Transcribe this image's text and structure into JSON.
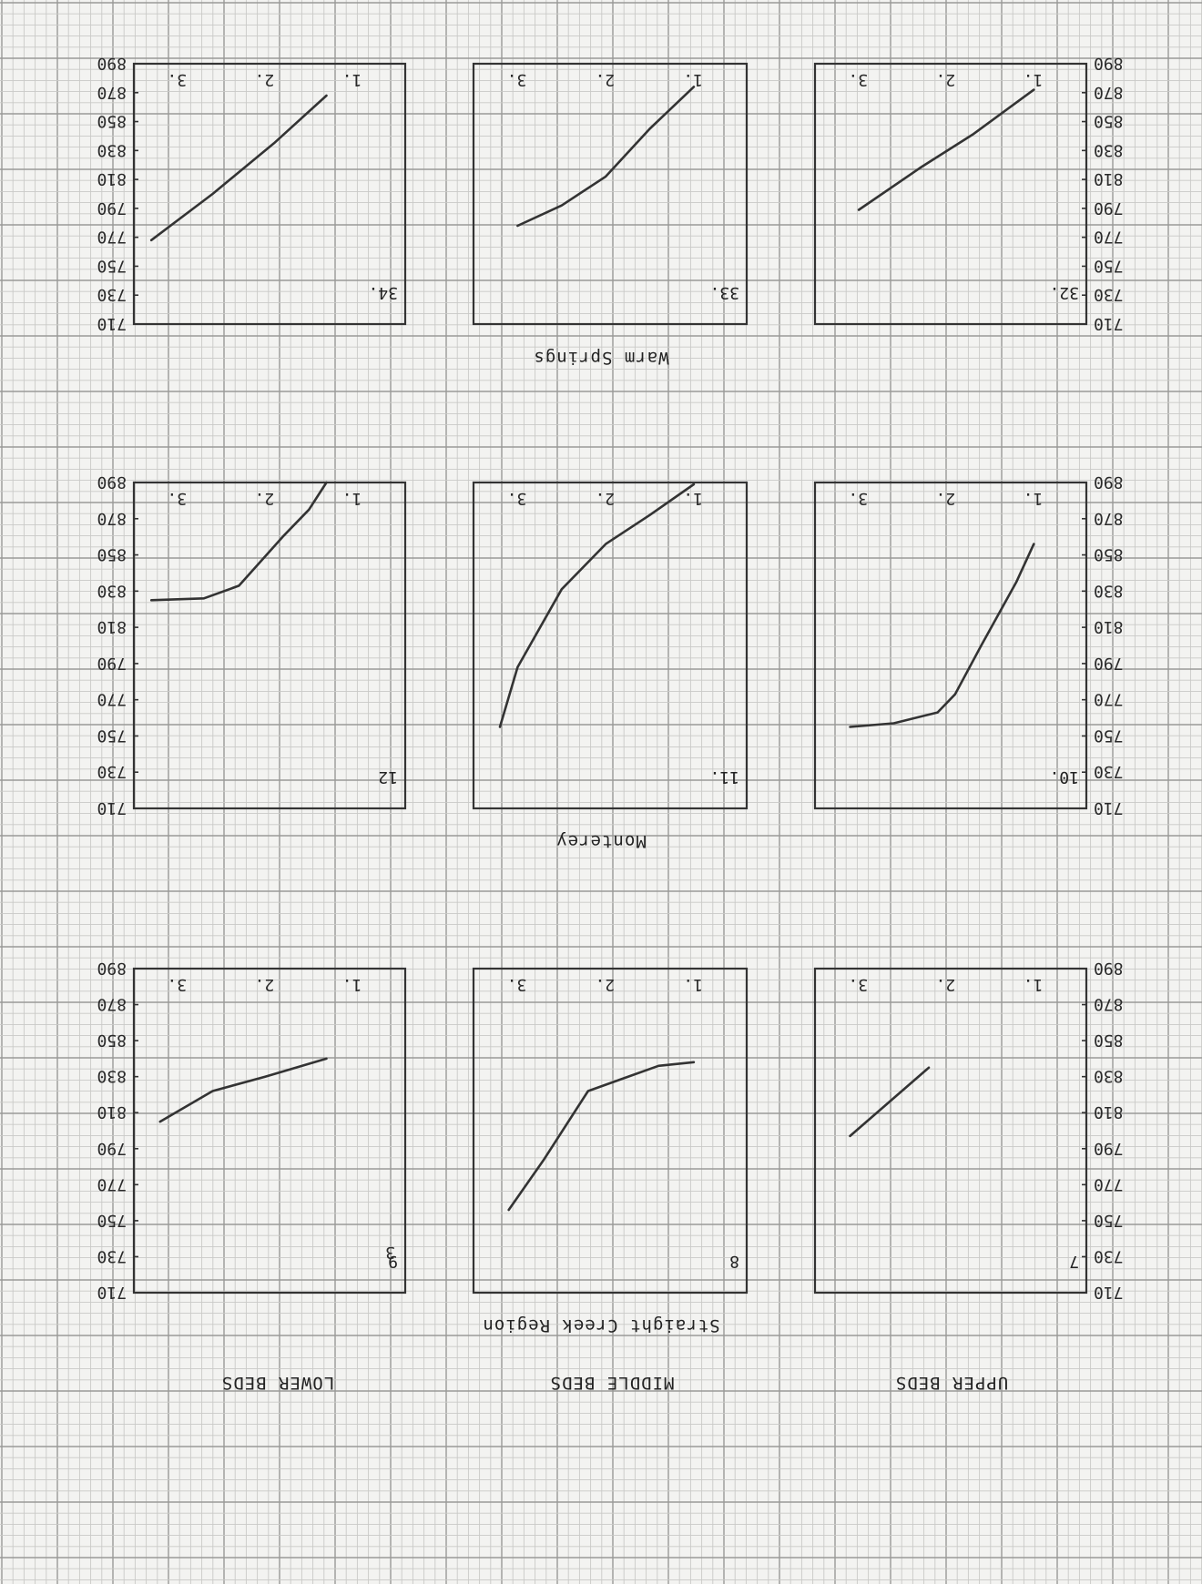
{
  "chart_data": [
    {
      "type": "line",
      "id": "7",
      "group": "Straight Creek Region",
      "beds": "UPPER BEDS",
      "x_ticks": [
        "1.",
        "2.",
        "3."
      ],
      "points": [
        [
          2.2,
          835
        ],
        [
          3.1,
          797
        ]
      ]
    },
    {
      "type": "line",
      "id": "8",
      "group": "Straight Creek Region",
      "beds": "MIDDLE BEDS",
      "x_ticks": [
        "1.",
        "2.",
        "3."
      ],
      "points": [
        [
          1.0,
          838
        ],
        [
          1.4,
          836
        ],
        [
          1.8,
          829
        ],
        [
          2.2,
          822
        ],
        [
          2.7,
          784
        ],
        [
          3.1,
          756
        ]
      ]
    },
    {
      "type": "line",
      "id": "9",
      "group": "Straight Creek Region",
      "beds": "LOWER BEDS",
      "x_ticks": [
        "1.",
        "2.",
        "3."
      ],
      "points": [
        [
          1.3,
          840
        ],
        [
          2.0,
          830
        ],
        [
          2.6,
          822
        ],
        [
          3.2,
          805
        ]
      ]
    },
    {
      "type": "line",
      "id": "10.",
      "group": "Monterey",
      "beds": "UPPER BEDS",
      "x_ticks": [
        "1.",
        "2.",
        "3."
      ],
      "points": [
        [
          1.0,
          856
        ],
        [
          1.2,
          835
        ],
        [
          1.6,
          800
        ],
        [
          1.9,
          773
        ],
        [
          2.1,
          763
        ],
        [
          2.6,
          757
        ],
        [
          3.1,
          755
        ]
      ]
    },
    {
      "type": "line",
      "id": "11.",
      "group": "Monterey",
      "beds": "MIDDLE BEDS",
      "x_ticks": [
        "1.",
        "2.",
        "3."
      ],
      "points": [
        [
          1.0,
          889
        ],
        [
          1.5,
          872
        ],
        [
          2.0,
          856
        ],
        [
          2.5,
          831
        ],
        [
          3.0,
          788
        ],
        [
          3.2,
          755
        ]
      ]
    },
    {
      "type": "line",
      "id": "12",
      "group": "Monterey",
      "beds": "LOWER BEDS",
      "x_ticks": [
        "1.",
        "2.",
        "3."
      ],
      "points": [
        [
          1.3,
          890
        ],
        [
          1.5,
          875
        ],
        [
          1.8,
          860
        ],
        [
          2.3,
          833
        ],
        [
          2.7,
          826
        ],
        [
          3.3,
          825
        ]
      ]
    },
    {
      "type": "line",
      "id": "32.",
      "group": "Warm Springs",
      "beds": "UPPER BEDS",
      "x_ticks": [
        "1.",
        "2.",
        "3."
      ],
      "points": [
        [
          1.0,
          872
        ],
        [
          1.7,
          841
        ],
        [
          2.3,
          818
        ],
        [
          3.0,
          789
        ]
      ]
    },
    {
      "type": "line",
      "id": "33.",
      "group": "Warm Springs",
      "beds": "MIDDLE BEDS",
      "x_ticks": [
        "1.",
        "2.",
        "3."
      ],
      "points": [
        [
          1.0,
          874
        ],
        [
          1.5,
          845
        ],
        [
          2.0,
          812
        ],
        [
          2.5,
          792
        ],
        [
          3.0,
          778
        ]
      ]
    },
    {
      "type": "line",
      "id": "34.",
      "group": "Warm Springs",
      "beds": "LOWER BEDS",
      "x_ticks": [
        "1.",
        "2.",
        "3."
      ],
      "points": [
        [
          1.3,
          868
        ],
        [
          1.9,
          835
        ],
        [
          2.6,
          800
        ],
        [
          3.3,
          768
        ]
      ]
    }
  ],
  "y_ticks": [
    "710",
    "730",
    "750",
    "770",
    "790",
    "810",
    "830",
    "850",
    "870",
    "890"
  ],
  "x_lim": [
    0.4,
    3.5
  ],
  "y_lim": [
    710,
    890
  ],
  "region_labels": {
    "bottom": "Straight Creek Region",
    "middle": "Monterey",
    "top": "Warm Springs"
  },
  "column_labels": [
    "UPPER BEDS",
    "MIDDLE BEDS",
    "LOWER BEDS"
  ],
  "stray_mark": "3",
  "colors": {
    "paper": "#f3f3f1",
    "ink": "#2a2a2a",
    "grid_minor": "#c9c9c7",
    "grid_major": "#9a9a98"
  }
}
